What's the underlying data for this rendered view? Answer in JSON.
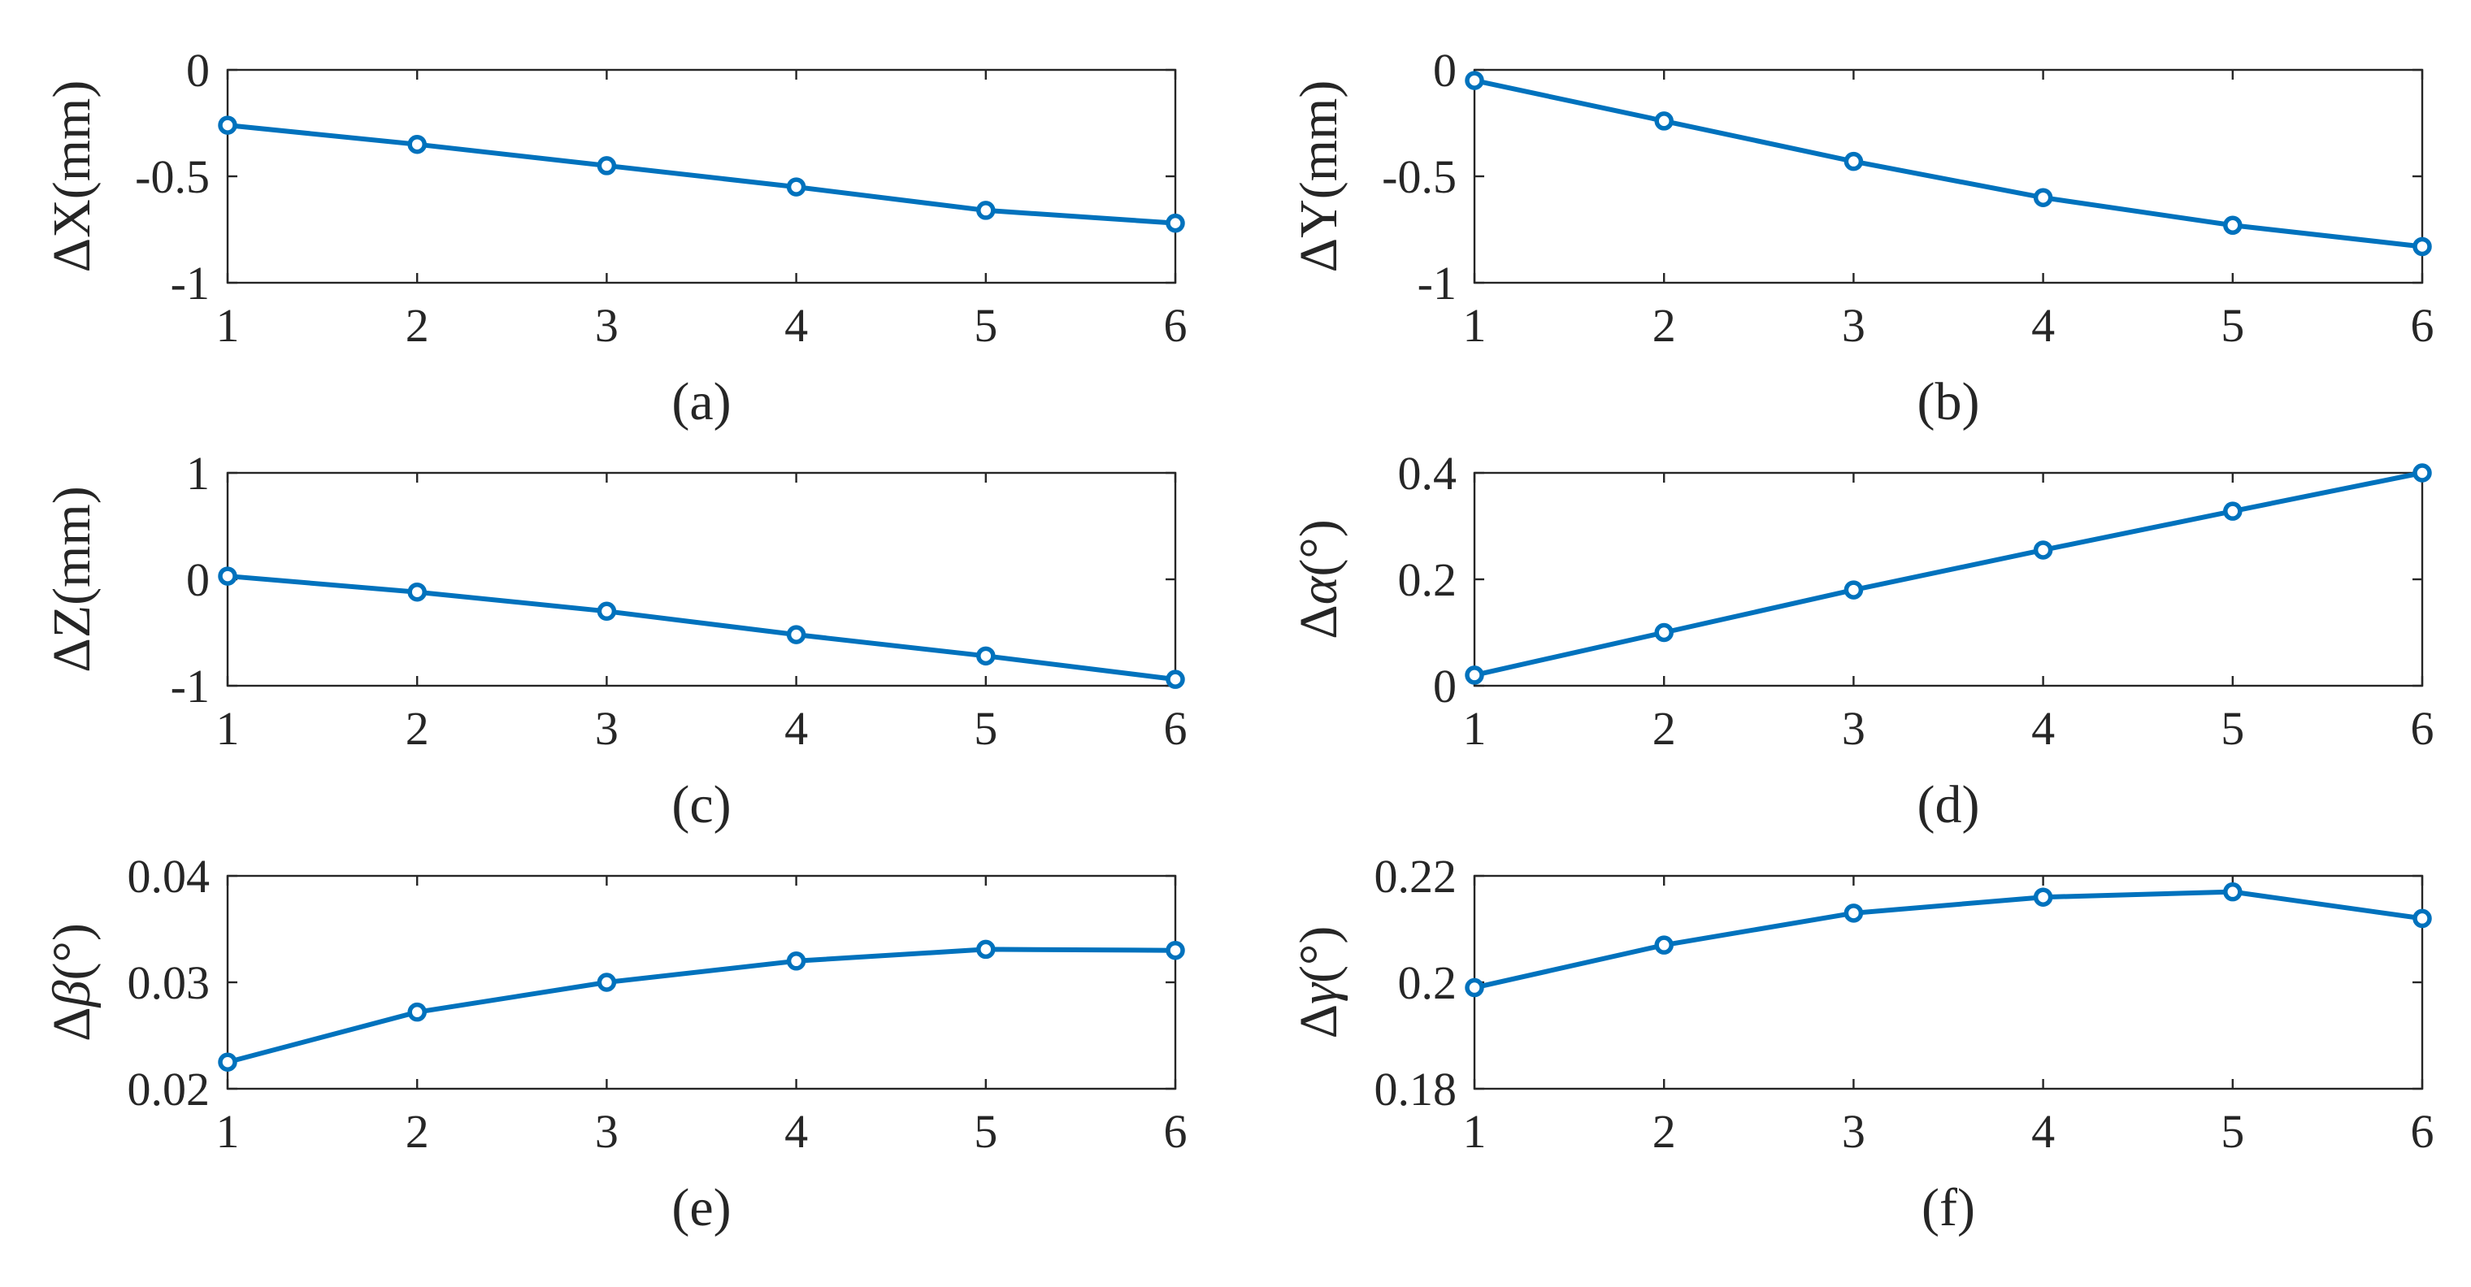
{
  "series_color": "#0072BD",
  "axis_color": "#262626",
  "chart_data": [
    {
      "id": "a",
      "type": "line",
      "caption": "(a)",
      "ylabel": "ΔX(mm)",
      "ylabel_parts": [
        {
          "text": "ΔX(mm)",
          "italic": false
        }
      ],
      "x": [
        1,
        2,
        3,
        4,
        5,
        6
      ],
      "xticks": [
        "1",
        "2",
        "3",
        "4",
        "5",
        "6"
      ],
      "xlim": [
        1,
        6
      ],
      "ylim": [
        -1,
        0
      ],
      "yticks": [
        0,
        -0.5,
        -1
      ],
      "ytick_labels": [
        "0",
        "-0.5",
        "-1"
      ],
      "values": [
        -0.26,
        -0.35,
        -0.45,
        -0.55,
        -0.66,
        -0.72
      ]
    },
    {
      "id": "b",
      "type": "line",
      "caption": "(b)",
      "ylabel": "ΔY(mm)",
      "ylabel_parts": [
        {
          "text": "ΔY(mm)",
          "italic": false
        }
      ],
      "x": [
        1,
        2,
        3,
        4,
        5,
        6
      ],
      "xticks": [
        "1",
        "2",
        "3",
        "4",
        "5",
        "6"
      ],
      "xlim": [
        1,
        6
      ],
      "ylim": [
        -1,
        0
      ],
      "yticks": [
        0,
        -0.5,
        -1
      ],
      "ytick_labels": [
        "0",
        "-0.5",
        "-1"
      ],
      "values": [
        -0.05,
        -0.24,
        -0.43,
        -0.6,
        -0.73,
        -0.83
      ]
    },
    {
      "id": "c",
      "type": "line",
      "caption": "(c)",
      "ylabel": "ΔZ(mm)",
      "ylabel_parts": [
        {
          "text": "ΔZ(mm)",
          "italic": false
        }
      ],
      "x": [
        1,
        2,
        3,
        4,
        5,
        6
      ],
      "xticks": [
        "1",
        "2",
        "3",
        "4",
        "5",
        "6"
      ],
      "xlim": [
        1,
        6
      ],
      "ylim": [
        -1,
        1
      ],
      "yticks": [
        1,
        0,
        -1
      ],
      "ytick_labels": [
        "1",
        "0",
        "-1"
      ],
      "values": [
        0.03,
        -0.12,
        -0.3,
        -0.52,
        -0.72,
        -0.94
      ]
    },
    {
      "id": "d",
      "type": "line",
      "caption": "(d)",
      "ylabel": "Δα(°)",
      "ylabel_parts": [
        {
          "text": "Δ",
          "italic": false
        },
        {
          "text": "α",
          "italic": true
        },
        {
          "text": "(°)",
          "italic": false
        }
      ],
      "x": [
        1,
        2,
        3,
        4,
        5,
        6
      ],
      "xticks": [
        "1",
        "2",
        "3",
        "4",
        "5",
        "6"
      ],
      "xlim": [
        1,
        6
      ],
      "ylim": [
        0,
        0.4
      ],
      "yticks": [
        0.4,
        0.2,
        0
      ],
      "ytick_labels": [
        "0.4",
        "0.2",
        "0"
      ],
      "values": [
        0.02,
        0.1,
        0.18,
        0.255,
        0.328,
        0.4
      ]
    },
    {
      "id": "e",
      "type": "line",
      "caption": "(e)",
      "ylabel": "Δβ(°)",
      "ylabel_parts": [
        {
          "text": "Δ",
          "italic": false
        },
        {
          "text": "β",
          "italic": true
        },
        {
          "text": "(°)",
          "italic": false
        }
      ],
      "x": [
        1,
        2,
        3,
        4,
        5,
        6
      ],
      "xticks": [
        "1",
        "2",
        "3",
        "4",
        "5",
        "6"
      ],
      "xlim": [
        1,
        6
      ],
      "ylim": [
        0.02,
        0.04
      ],
      "yticks": [
        0.04,
        0.03,
        0.02
      ],
      "ytick_labels": [
        "0.04",
        "0.03",
        "0.02"
      ],
      "values": [
        0.0225,
        0.0272,
        0.03,
        0.032,
        0.0331,
        0.033
      ]
    },
    {
      "id": "f",
      "type": "line",
      "caption": "(f)",
      "ylabel": "Δγ(°)",
      "ylabel_parts": [
        {
          "text": "Δ",
          "italic": false
        },
        {
          "text": "γ",
          "italic": true
        },
        {
          "text": "(°)",
          "italic": false
        }
      ],
      "x": [
        1,
        2,
        3,
        4,
        5,
        6
      ],
      "xticks": [
        "1",
        "2",
        "3",
        "4",
        "5",
        "6"
      ],
      "xlim": [
        1,
        6
      ],
      "ylim": [
        0.18,
        0.22
      ],
      "yticks": [
        0.22,
        0.2,
        0.18
      ],
      "ytick_labels": [
        "0.22",
        "0.2",
        "0.18"
      ],
      "values": [
        0.199,
        0.207,
        0.213,
        0.216,
        0.217,
        0.212
      ]
    }
  ]
}
